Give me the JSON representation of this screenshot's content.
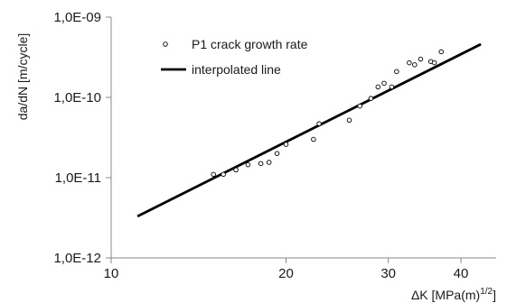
{
  "chart_data": {
    "type": "scatter",
    "title": "",
    "x_scale": "log",
    "y_scale": "log",
    "xlim": [
      10,
      46
    ],
    "ylim": [
      1e-12,
      1e-09
    ],
    "x_ticks": [
      {
        "value": 10,
        "label": "10"
      },
      {
        "value": 20,
        "label": "20"
      },
      {
        "value": 30,
        "label": "30"
      },
      {
        "value": 40,
        "label": "40"
      }
    ],
    "y_ticks": [
      {
        "value": 1e-12,
        "label": "1,0E-12"
      },
      {
        "value": 1e-11,
        "label": "1,0E-11"
      },
      {
        "value": 1e-10,
        "label": "1,0E-10"
      },
      {
        "value": 1e-09,
        "label": "1,0E-09"
      }
    ],
    "xlabel_main": "ΔK [MPa(m)",
    "xlabel_sup": "1/2",
    "xlabel_end": "]",
    "ylabel": "da/dN [m/cycle]",
    "grid": "none",
    "legend_position": "top-left",
    "series": [
      {
        "name": "P1 crack growth rate",
        "kind": "markers",
        "color": "#000000",
        "points": [
          [
            15.0,
            1.1e-11
          ],
          [
            15.6,
            1.1e-11
          ],
          [
            16.4,
            1.25e-11
          ],
          [
            17.2,
            1.45e-11
          ],
          [
            18.1,
            1.5e-11
          ],
          [
            18.7,
            1.55e-11
          ],
          [
            19.3,
            2e-11
          ],
          [
            20.0,
            2.6e-11
          ],
          [
            22.3,
            3e-11
          ],
          [
            22.8,
            4.7e-11
          ],
          [
            25.7,
            5.2e-11
          ],
          [
            26.8,
            7.8e-11
          ],
          [
            28.0,
            9.7e-11
          ],
          [
            28.8,
            1.35e-10
          ],
          [
            29.5,
            1.5e-10
          ],
          [
            30.4,
            1.35e-10
          ],
          [
            31.0,
            2.1e-10
          ],
          [
            32.6,
            2.7e-10
          ],
          [
            33.3,
            2.55e-10
          ],
          [
            34.1,
            3e-10
          ],
          [
            35.5,
            2.8e-10
          ],
          [
            36.0,
            2.7e-10
          ],
          [
            37.0,
            3.7e-10
          ]
        ]
      },
      {
        "name": "interpolated line",
        "kind": "line",
        "color": "#000000",
        "points": [
          [
            11.1,
            3.3e-12
          ],
          [
            43.3,
            4.6e-10
          ]
        ]
      }
    ]
  }
}
